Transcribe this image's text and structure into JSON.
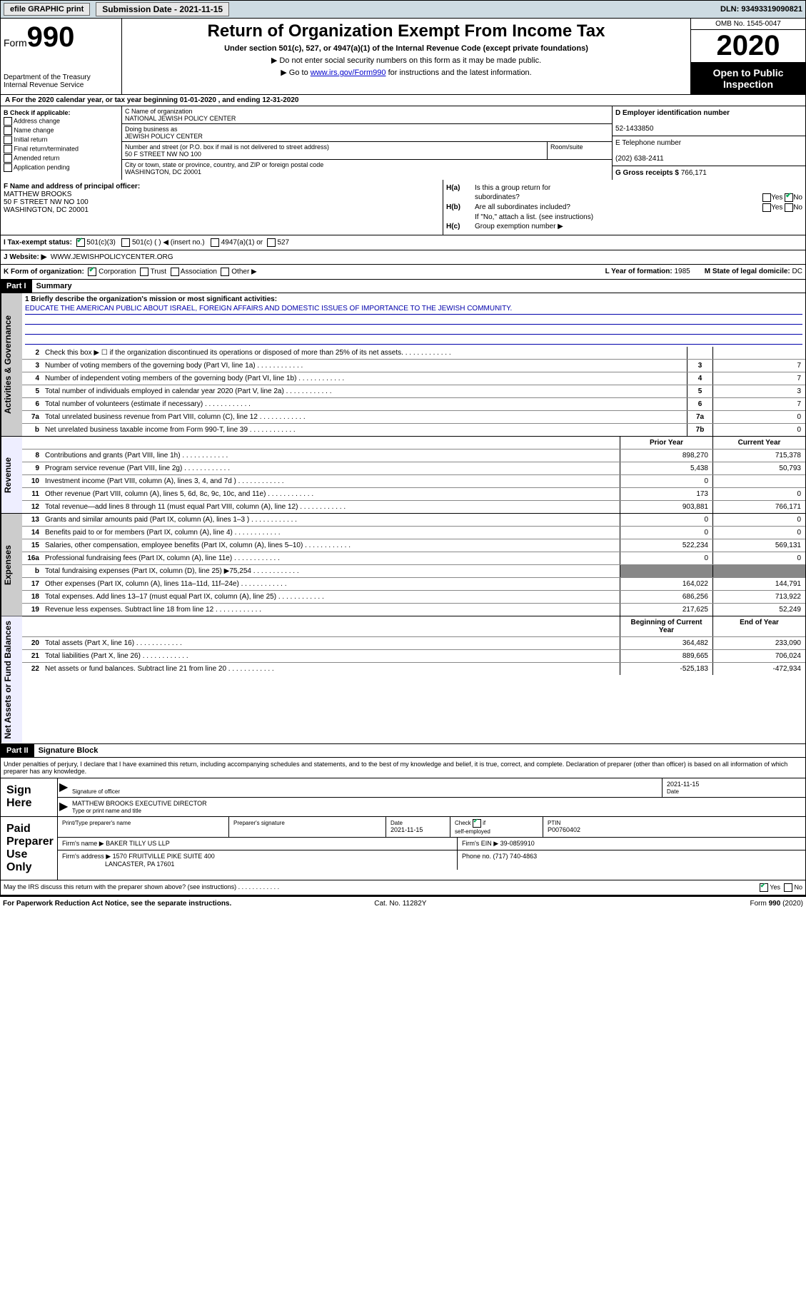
{
  "topbar": {
    "efile": "efile GRAPHIC print",
    "subdate_label": "Submission Date - 2021-11-15",
    "dln": "DLN: 93493319090821"
  },
  "header": {
    "form_label": "Form",
    "form_num": "990",
    "dept": "Department of the Treasury",
    "irs": "Internal Revenue Service",
    "title": "Return of Organization Exempt From Income Tax",
    "sub": "Under section 501(c), 527, or 4947(a)(1) of the Internal Revenue Code (except private foundations)",
    "note1": "▶ Do not enter social security numbers on this form as it may be made public.",
    "note2_a": "▶ Go to ",
    "note2_link": "www.irs.gov/Form990",
    "note2_b": " for instructions and the latest information.",
    "omb": "OMB No. 1545-0047",
    "year": "2020",
    "open": "Open to Public Inspection"
  },
  "row_a": "A For the 2020 calendar year, or tax year beginning 01-01-2020   , and ending 12-31-2020",
  "col_b": {
    "hdr": "B Check if applicable:",
    "opts": [
      "Address change",
      "Name change",
      "Initial return",
      "Final return/terminated",
      "Amended return",
      "Application pending"
    ]
  },
  "col_c": {
    "name_lbl": "C Name of organization",
    "name": "NATIONAL JEWISH POLICY CENTER",
    "dba_lbl": "Doing business as",
    "dba": "JEWISH POLICY CENTER",
    "addr_lbl": "Number and street (or P.O. box if mail is not delivered to street address)",
    "room_lbl": "Room/suite",
    "addr": "50 F STREET NW NO 100",
    "city_lbl": "City or town, state or province, country, and ZIP or foreign postal code",
    "city": "WASHINGTON, DC  20001"
  },
  "col_d": {
    "ein_lbl": "D Employer identification number",
    "ein": "52-1433850",
    "tel_lbl": "E Telephone number",
    "tel": "(202) 638-2411",
    "gross_lbl": "G Gross receipts $ ",
    "gross": "766,171"
  },
  "f": {
    "lbl": "F  Name and address of principal officer:",
    "name": "MATTHEW BROOKS",
    "addr1": "50 F STREET NW NO 100",
    "addr2": "WASHINGTON, DC  20001"
  },
  "h": {
    "a_lbl": "Is this a group return for",
    "a_sub": "subordinates?",
    "b_lbl": "Are all subordinates included?",
    "b_note": "If \"No,\" attach a list. (see instructions)",
    "c_lbl": "Group exemption number ▶"
  },
  "i": {
    "lbl": "I  Tax-exempt status:",
    "o1": "501(c)(3)",
    "o2": "501(c) (   ) ◀ (insert no.)",
    "o3": "4947(a)(1) or",
    "o4": "527"
  },
  "j": {
    "lbl": "J   Website: ▶",
    "val": "WWW.JEWISHPOLICYCENTER.ORG"
  },
  "k": {
    "lbl": "K Form of organization:",
    "o1": "Corporation",
    "o2": "Trust",
    "o3": "Association",
    "o4": "Other ▶",
    "l_lbl": "L Year of formation: ",
    "l_val": "1985",
    "m_lbl": "M State of legal domicile: ",
    "m_val": "DC"
  },
  "parts": {
    "p1": "Part I",
    "p1t": "Summary",
    "p2": "Part II",
    "p2t": "Signature Block"
  },
  "sidebars": {
    "gov": "Activities & Governance",
    "rev": "Revenue",
    "exp": "Expenses",
    "net": "Net Assets or Fund Balances"
  },
  "mission": {
    "lbl": "1   Briefly describe the organization's mission or most significant activities:",
    "text": "EDUCATE THE AMERICAN PUBLIC ABOUT ISRAEL, FOREIGN AFFAIRS AND DOMESTIC ISSUES OF IMPORTANCE TO THE JEWISH COMMUNITY."
  },
  "gov_rows": [
    {
      "n": "2",
      "d": "Check this box ▶ ☐  if the organization discontinued its operations or disposed of more than 25% of its net assets.",
      "box": "",
      "v": ""
    },
    {
      "n": "3",
      "d": "Number of voting members of the governing body (Part VI, line 1a)",
      "box": "3",
      "v": "7"
    },
    {
      "n": "4",
      "d": "Number of independent voting members of the governing body (Part VI, line 1b)",
      "box": "4",
      "v": "7"
    },
    {
      "n": "5",
      "d": "Total number of individuals employed in calendar year 2020 (Part V, line 2a)",
      "box": "5",
      "v": "3"
    },
    {
      "n": "6",
      "d": "Total number of volunteers (estimate if necessary)",
      "box": "6",
      "v": "7"
    },
    {
      "n": "7a",
      "d": "Total unrelated business revenue from Part VIII, column (C), line 12",
      "box": "7a",
      "v": "0"
    },
    {
      "n": "b",
      "d": "Net unrelated business taxable income from Form 990-T, line 39",
      "box": "7b",
      "v": "0"
    }
  ],
  "col_hdr": {
    "py": "Prior Year",
    "cy": "Current Year",
    "boy": "Beginning of Current Year",
    "eoy": "End of Year"
  },
  "rev_rows": [
    {
      "n": "8",
      "d": "Contributions and grants (Part VIII, line 1h)",
      "py": "898,270",
      "cy": "715,378"
    },
    {
      "n": "9",
      "d": "Program service revenue (Part VIII, line 2g)",
      "py": "5,438",
      "cy": "50,793"
    },
    {
      "n": "10",
      "d": "Investment income (Part VIII, column (A), lines 3, 4, and 7d )",
      "py": "0",
      "cy": ""
    },
    {
      "n": "11",
      "d": "Other revenue (Part VIII, column (A), lines 5, 6d, 8c, 9c, 10c, and 11e)",
      "py": "173",
      "cy": "0"
    },
    {
      "n": "12",
      "d": "Total revenue—add lines 8 through 11 (must equal Part VIII, column (A), line 12)",
      "py": "903,881",
      "cy": "766,171"
    }
  ],
  "exp_rows": [
    {
      "n": "13",
      "d": "Grants and similar amounts paid (Part IX, column (A), lines 1–3 )",
      "py": "0",
      "cy": "0"
    },
    {
      "n": "14",
      "d": "Benefits paid to or for members (Part IX, column (A), line 4)",
      "py": "0",
      "cy": "0"
    },
    {
      "n": "15",
      "d": "Salaries, other compensation, employee benefits (Part IX, column (A), lines 5–10)",
      "py": "522,234",
      "cy": "569,131"
    },
    {
      "n": "16a",
      "d": "Professional fundraising fees (Part IX, column (A), line 11e)",
      "py": "0",
      "cy": "0"
    },
    {
      "n": "b",
      "d": "Total fundraising expenses (Part IX, column (D), line 25) ▶75,254",
      "py": "GRAY",
      "cy": "GRAY"
    },
    {
      "n": "17",
      "d": "Other expenses (Part IX, column (A), lines 11a–11d, 11f–24e)",
      "py": "164,022",
      "cy": "144,791"
    },
    {
      "n": "18",
      "d": "Total expenses. Add lines 13–17 (must equal Part IX, column (A), line 25)",
      "py": "686,256",
      "cy": "713,922"
    },
    {
      "n": "19",
      "d": "Revenue less expenses. Subtract line 18 from line 12",
      "py": "217,625",
      "cy": "52,249"
    }
  ],
  "net_rows": [
    {
      "n": "20",
      "d": "Total assets (Part X, line 16)",
      "py": "364,482",
      "cy": "233,090"
    },
    {
      "n": "21",
      "d": "Total liabilities (Part X, line 26)",
      "py": "889,665",
      "cy": "706,024"
    },
    {
      "n": "22",
      "d": "Net assets or fund balances. Subtract line 21 from line 20",
      "py": "-525,183",
      "cy": "-472,934"
    }
  ],
  "sig": {
    "decl": "Under penalties of perjury, I declare that I have examined this return, including accompanying schedules and statements, and to the best of my knowledge and belief, it is true, correct, and complete. Declaration of preparer (other than officer) is based on all information of which preparer has any knowledge.",
    "sign_here": "Sign Here",
    "sig_officer": "Signature of officer",
    "date": "2021-11-15",
    "date_lbl": "Date",
    "name": "MATTHEW BROOKS EXECUTIVE DIRECTOR",
    "name_lbl": "Type or print name and title",
    "paid": "Paid Preparer Use Only",
    "prep_name_lbl": "Print/Type preparer's name",
    "prep_sig_lbl": "Preparer's signature",
    "prep_date": "2021-11-15",
    "chk_lbl": "Check        if self-employed",
    "ptin_lbl": "PTIN",
    "ptin": "P00760402",
    "firm_name_lbl": "Firm's name    ▶",
    "firm_name": "BAKER TILLY US LLP",
    "firm_ein_lbl": "Firm's EIN ▶",
    "firm_ein": "39-0859910",
    "firm_addr_lbl": "Firm's address ▶",
    "firm_addr1": "1570 FRUITVILLE PIKE SUITE 400",
    "firm_addr2": "LANCASTER, PA  17601",
    "phone_lbl": "Phone no. ",
    "phone": "(717) 740-4863",
    "discuss": "May the IRS discuss this return with the preparer shown above? (see instructions)"
  },
  "footer": {
    "left": "For Paperwork Reduction Act Notice, see the separate instructions.",
    "mid": "Cat. No. 11282Y",
    "right": "Form 990 (2020)"
  },
  "yesno": {
    "yes": "Yes",
    "no": "No"
  }
}
